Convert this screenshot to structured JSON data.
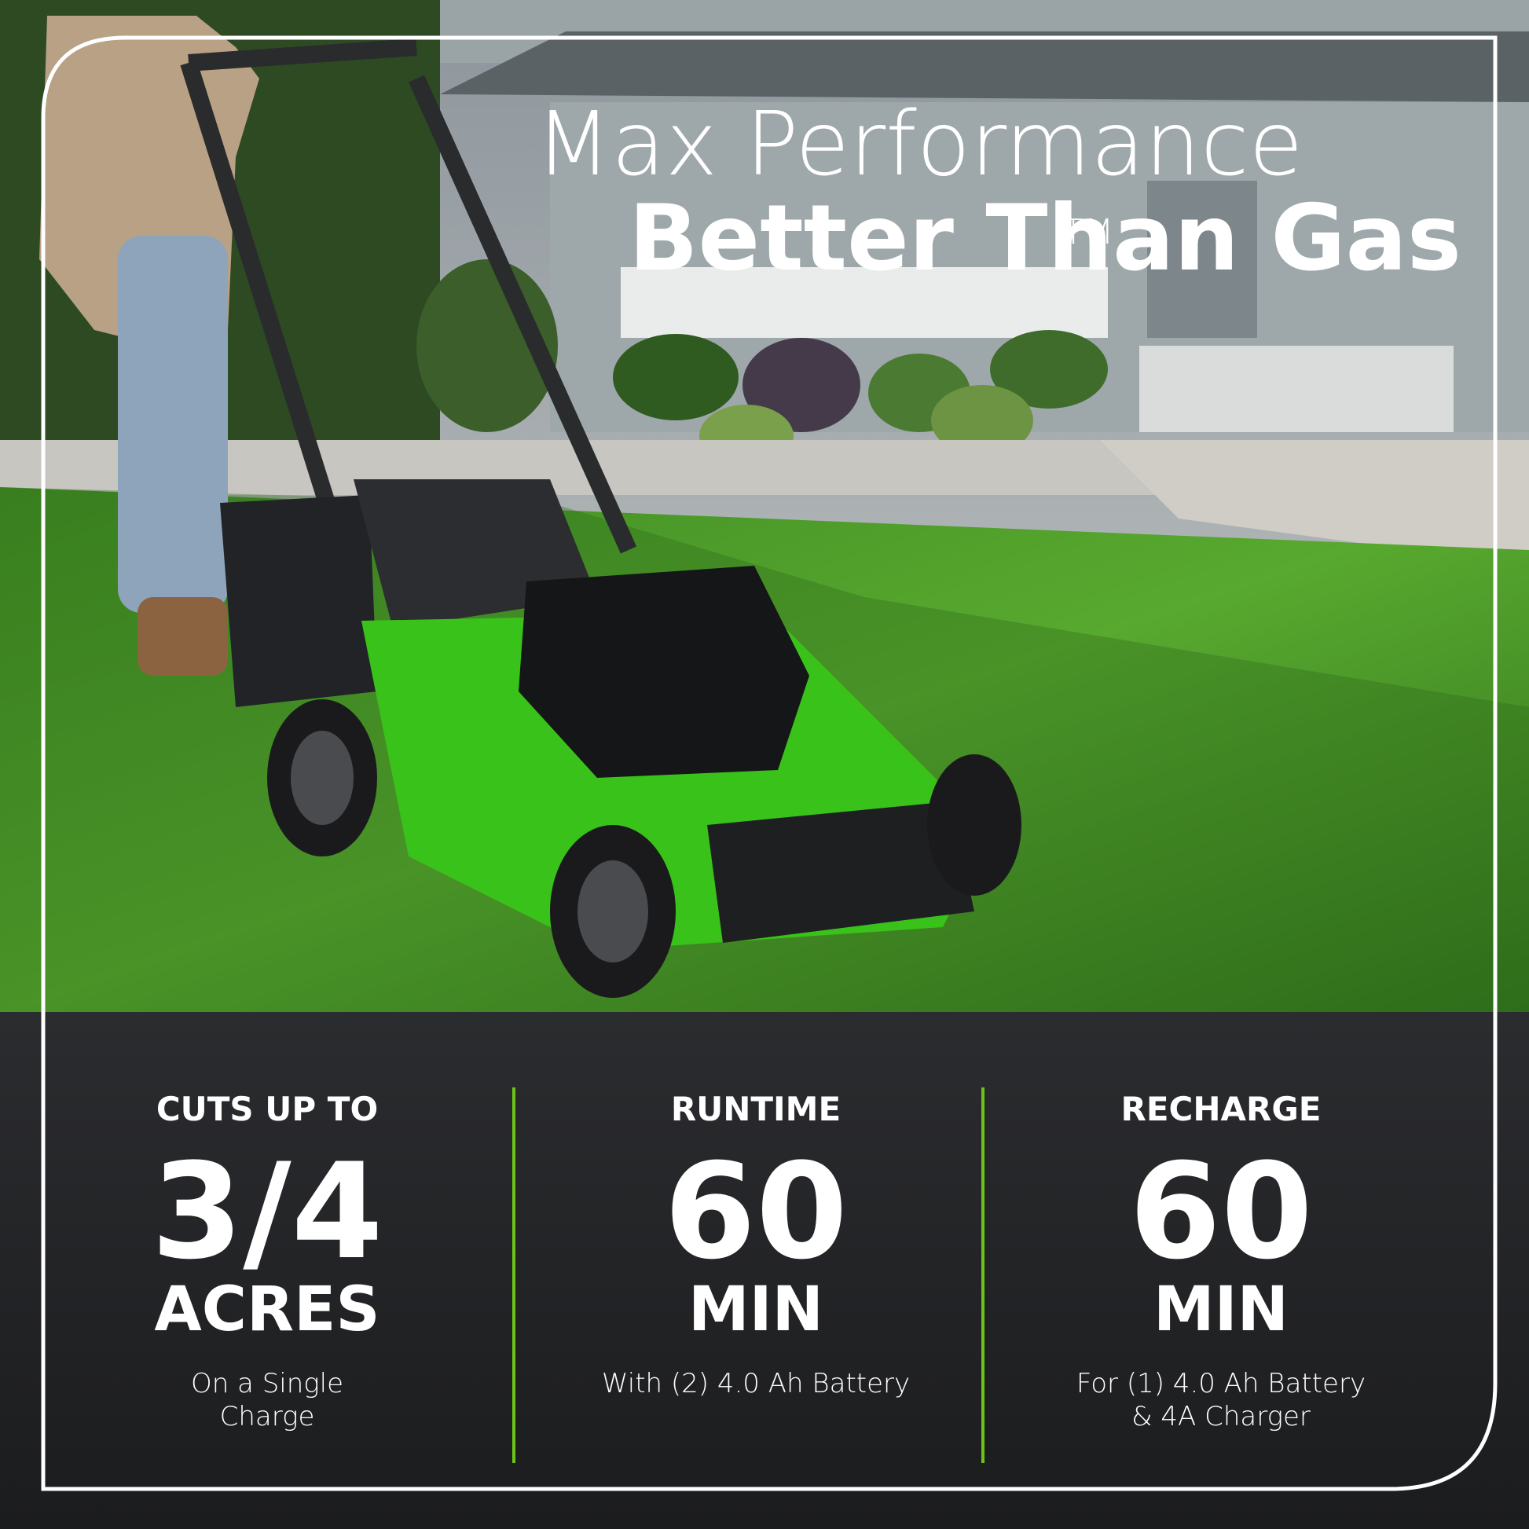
{
  "header": {
    "title_line1": "Max Performance",
    "title_line2": "Better Than Gas",
    "trademark": "TM"
  },
  "stats": [
    {
      "label": "CUTS UP TO",
      "value": "3/4",
      "unit": "ACRES",
      "note": [
        "On a Single",
        "Charge"
      ]
    },
    {
      "label": "RUNTIME",
      "value": "60",
      "unit": "MIN",
      "note": [
        "With (2) 4.0 Ah Battery"
      ]
    },
    {
      "label": "RECHARGE",
      "value": "60",
      "unit": "MIN",
      "note": [
        "For (1) 4.0 Ah Battery",
        "& 4A Charger"
      ]
    }
  ]
}
